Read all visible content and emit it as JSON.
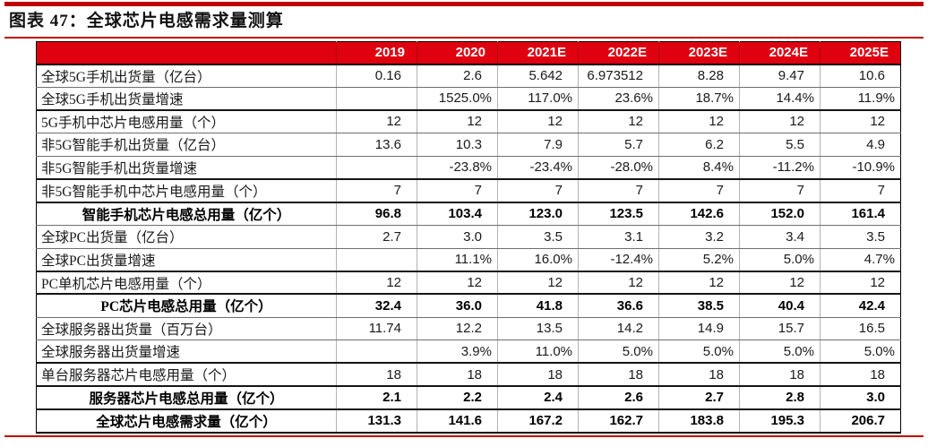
{
  "title": "图表 47：全球芯片电感需求量测算",
  "colors": {
    "accent_red_bar": "#C00000",
    "header_red": "#DF0010",
    "header_text": "#FFFFFF",
    "thin_border": "#6E6E6E",
    "thick_border": "#141414"
  },
  "table": {
    "columns": [
      "2019",
      "2020",
      "2021E",
      "2022E",
      "2023E",
      "2024E",
      "2025E"
    ],
    "rows": [
      {
        "label": "全球5G手机出货量（亿台）",
        "vtype": "num",
        "bold": false,
        "sep": "thin",
        "values": [
          "0.16",
          "2.6",
          "5.642",
          "6.973512",
          "8.28",
          "9.47",
          "10.6"
        ]
      },
      {
        "label": "全球5G手机出货量增速",
        "vtype": "pct",
        "bold": false,
        "sep": "thick",
        "values": [
          "",
          "1525.0%",
          "117.0%",
          "23.6%",
          "18.7%",
          "14.4%",
          "11.9%"
        ]
      },
      {
        "label": "5G手机中芯片电感用量（个）",
        "vtype": "num",
        "bold": false,
        "sep": "thin",
        "values": [
          "12",
          "12",
          "12",
          "12",
          "12",
          "12",
          "12"
        ]
      },
      {
        "label": "非5G智能手机出货量（亿台）",
        "vtype": "num",
        "bold": false,
        "sep": "thin",
        "values": [
          "13.6",
          "10.3",
          "7.9",
          "5.7",
          "6.2",
          "5.5",
          "4.9"
        ]
      },
      {
        "label": "非5G智能手机出货量增速",
        "vtype": "pct",
        "bold": false,
        "sep": "thick",
        "values": [
          "",
          "-23.8%",
          "-23.4%",
          "-28.0%",
          "8.4%",
          "-11.2%",
          "-10.9%"
        ]
      },
      {
        "label": "非5G智能手机中芯片电感用量（个）",
        "vtype": "num",
        "bold": false,
        "sep": "thick",
        "values": [
          "7",
          "7",
          "7",
          "7",
          "7",
          "7",
          "7"
        ]
      },
      {
        "label": "智能手机芯片电感总用量（亿个）",
        "vtype": "num",
        "bold": true,
        "sep": "thin",
        "values": [
          "96.8",
          "103.4",
          "123.0",
          "123.5",
          "142.6",
          "152.0",
          "161.4"
        ]
      },
      {
        "label": "全球PC出货量（亿台）",
        "vtype": "num",
        "bold": false,
        "sep": "thin",
        "values": [
          "2.7",
          "3.0",
          "3.5",
          "3.1",
          "3.2",
          "3.4",
          "3.5"
        ]
      },
      {
        "label": "全球PC出货量增速",
        "vtype": "pct",
        "bold": false,
        "sep": "thick",
        "values": [
          "",
          "11.1%",
          "16.0%",
          "-12.4%",
          "5.2%",
          "5.0%",
          "4.7%"
        ]
      },
      {
        "label": "PC单机芯片电感用量（个）",
        "vtype": "num",
        "bold": false,
        "sep": "thick",
        "values": [
          "12",
          "12",
          "12",
          "12",
          "12",
          "12",
          "12"
        ]
      },
      {
        "label": "PC芯片电感总用量（亿个）",
        "vtype": "num",
        "bold": true,
        "sep": "thin",
        "values": [
          "32.4",
          "36.0",
          "41.8",
          "36.6",
          "38.5",
          "40.4",
          "42.4"
        ]
      },
      {
        "label": "全球服务器出货量（百万台）",
        "vtype": "num",
        "bold": false,
        "sep": "thin",
        "values": [
          "11.74",
          "12.2",
          "13.5",
          "14.2",
          "14.9",
          "15.7",
          "16.5"
        ]
      },
      {
        "label": "全球服务器出货量增速",
        "vtype": "pct",
        "bold": false,
        "sep": "thick",
        "values": [
          "",
          "3.9%",
          "11.0%",
          "5.0%",
          "5.0%",
          "5.0%",
          "5.0%"
        ]
      },
      {
        "label": "单台服务器芯片电感用量（个）",
        "vtype": "num",
        "bold": false,
        "sep": "thick",
        "values": [
          "18",
          "18",
          "18",
          "18",
          "18",
          "18",
          "18"
        ]
      },
      {
        "label": "服务器芯片电感总用量（亿个）",
        "vtype": "num",
        "bold": true,
        "sep": "thick",
        "values": [
          "2.1",
          "2.2",
          "2.4",
          "2.6",
          "2.7",
          "2.8",
          "3.0"
        ]
      },
      {
        "label": "全球芯片电感需求量（亿个）",
        "vtype": "num",
        "bold": true,
        "sep": "none",
        "values": [
          "131.3",
          "141.6",
          "167.2",
          "162.7",
          "183.8",
          "195.3",
          "206.7"
        ]
      }
    ]
  }
}
